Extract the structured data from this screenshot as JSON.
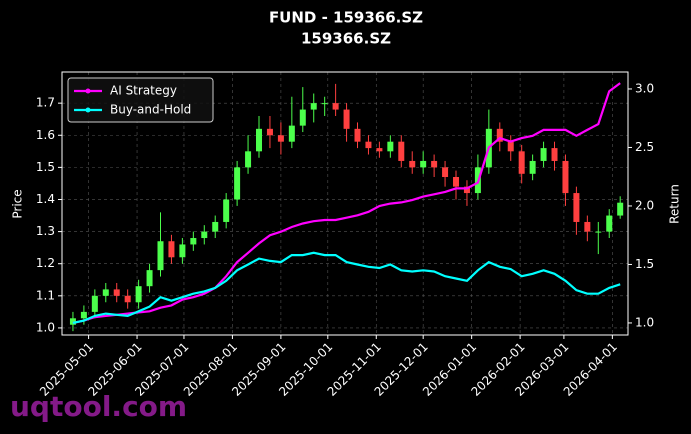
{
  "chart_data": {
    "type": "candlestick",
    "title": "FUND - 159366.SZ",
    "subtitle": "159366.SZ",
    "ylabel": "Price",
    "y2label": "Return",
    "watermark": "uqtool.com",
    "x": [
      "2025-04-21",
      "2025-04-28",
      "2025-05-05",
      "2025-05-12",
      "2025-05-19",
      "2025-05-26",
      "2025-06-02",
      "2025-06-09",
      "2025-06-16",
      "2025-06-23",
      "2025-06-30",
      "2025-07-07",
      "2025-07-14",
      "2025-07-21",
      "2025-07-28",
      "2025-08-04",
      "2025-08-11",
      "2025-08-18",
      "2025-08-25",
      "2025-09-01",
      "2025-09-08",
      "2025-09-15",
      "2025-09-22",
      "2025-09-29",
      "2025-10-06",
      "2025-10-13",
      "2025-10-20",
      "2025-10-27",
      "2025-11-03",
      "2025-11-10",
      "2025-11-17",
      "2025-11-24",
      "2025-12-01",
      "2025-12-08",
      "2025-12-15",
      "2025-12-22",
      "2025-12-29",
      "2026-01-05",
      "2026-01-12",
      "2026-01-19",
      "2026-01-26",
      "2026-02-02",
      "2026-02-09",
      "2026-02-16",
      "2026-02-23",
      "2026-03-02",
      "2026-03-09",
      "2026-03-16",
      "2026-03-23",
      "2026-03-30",
      "2026-04-06"
    ],
    "open": [
      1.01,
      1.03,
      1.05,
      1.1,
      1.12,
      1.1,
      1.08,
      1.13,
      1.18,
      1.27,
      1.22,
      1.26,
      1.28,
      1.3,
      1.33,
      1.4,
      1.5,
      1.55,
      1.62,
      1.6,
      1.58,
      1.63,
      1.68,
      1.7,
      1.7,
      1.68,
      1.62,
      1.58,
      1.56,
      1.55,
      1.58,
      1.52,
      1.5,
      1.52,
      1.5,
      1.47,
      1.44,
      1.42,
      1.5,
      1.62,
      1.58,
      1.55,
      1.48,
      1.52,
      1.56,
      1.52,
      1.42,
      1.33,
      1.3,
      1.3,
      1.35
    ],
    "high": [
      1.05,
      1.07,
      1.12,
      1.14,
      1.14,
      1.12,
      1.15,
      1.2,
      1.36,
      1.29,
      1.28,
      1.3,
      1.32,
      1.35,
      1.42,
      1.52,
      1.6,
      1.66,
      1.66,
      1.64,
      1.72,
      1.75,
      1.73,
      1.72,
      1.76,
      1.7,
      1.64,
      1.6,
      1.58,
      1.6,
      1.6,
      1.55,
      1.55,
      1.54,
      1.52,
      1.49,
      1.46,
      1.54,
      1.68,
      1.64,
      1.6,
      1.57,
      1.54,
      1.58,
      1.58,
      1.54,
      1.44,
      1.35,
      1.33,
      1.37,
      1.41
    ],
    "low": [
      0.99,
      1.01,
      1.03,
      1.08,
      1.08,
      1.06,
      1.06,
      1.11,
      1.16,
      1.2,
      1.2,
      1.24,
      1.26,
      1.28,
      1.31,
      1.38,
      1.48,
      1.53,
      1.56,
      1.54,
      1.56,
      1.61,
      1.64,
      1.66,
      1.66,
      1.58,
      1.56,
      1.54,
      1.53,
      1.53,
      1.5,
      1.48,
      1.48,
      1.47,
      1.44,
      1.4,
      1.38,
      1.4,
      1.48,
      1.55,
      1.52,
      1.45,
      1.46,
      1.5,
      1.49,
      1.38,
      1.29,
      1.27,
      1.23,
      1.28,
      1.34
    ],
    "close": [
      1.03,
      1.05,
      1.1,
      1.12,
      1.1,
      1.08,
      1.13,
      1.18,
      1.27,
      1.22,
      1.26,
      1.28,
      1.3,
      1.33,
      1.4,
      1.5,
      1.55,
      1.62,
      1.6,
      1.58,
      1.63,
      1.68,
      1.7,
      1.7,
      1.68,
      1.62,
      1.58,
      1.56,
      1.55,
      1.58,
      1.52,
      1.5,
      1.52,
      1.5,
      1.47,
      1.44,
      1.42,
      1.5,
      1.62,
      1.58,
      1.55,
      1.48,
      1.52,
      1.56,
      1.52,
      1.42,
      1.33,
      1.3,
      1.3,
      1.35,
      1.39
    ],
    "up_color": "#4cff4c",
    "down_color": "#ff4040",
    "series": [
      {
        "name": "AI Strategy",
        "color": "#ff00ff",
        "axis": "y2",
        "values": [
          1.0,
          1.02,
          1.05,
          1.06,
          1.07,
          1.08,
          1.09,
          1.1,
          1.13,
          1.15,
          1.2,
          1.22,
          1.25,
          1.3,
          1.4,
          1.52,
          1.6,
          1.68,
          1.75,
          1.78,
          1.82,
          1.85,
          1.87,
          1.88,
          1.88,
          1.9,
          1.92,
          1.95,
          2.0,
          2.02,
          2.03,
          2.05,
          2.08,
          2.1,
          2.12,
          2.15,
          2.15,
          2.2,
          2.5,
          2.58,
          2.55,
          2.58,
          2.6,
          2.65,
          2.65,
          2.65,
          2.6,
          2.65,
          2.7,
          2.98,
          3.05
        ]
      },
      {
        "name": "Buy-and-Hold",
        "color": "#00ffff",
        "axis": "y2",
        "values": [
          1.0,
          1.02,
          1.06,
          1.08,
          1.07,
          1.06,
          1.1,
          1.14,
          1.22,
          1.19,
          1.22,
          1.25,
          1.27,
          1.3,
          1.36,
          1.45,
          1.5,
          1.55,
          1.53,
          1.52,
          1.58,
          1.58,
          1.6,
          1.58,
          1.58,
          1.52,
          1.5,
          1.48,
          1.47,
          1.5,
          1.45,
          1.44,
          1.45,
          1.44,
          1.4,
          1.38,
          1.36,
          1.45,
          1.52,
          1.48,
          1.46,
          1.4,
          1.42,
          1.45,
          1.42,
          1.36,
          1.28,
          1.25,
          1.25,
          1.3,
          1.33
        ]
      }
    ],
    "xlim": [
      "2025-04-14",
      "2026-04-11"
    ],
    "xticks": [
      "2025-05-01",
      "2025-06-01",
      "2025-07-01",
      "2025-08-01",
      "2025-09-01",
      "2025-10-01",
      "2025-11-01",
      "2025-12-01",
      "2026-01-01",
      "2026-02-01",
      "2026-03-01",
      "2026-04-01"
    ],
    "ylim": [
      0.978,
      1.797
    ],
    "yticks": [
      {
        "value": 1,
        "label": "1.0"
      },
      1.1,
      1.2,
      1.3,
      1.4,
      1.5,
      1.6,
      1.7
    ],
    "y2lim": [
      0.897,
      3.145
    ],
    "y2ticks": [
      {
        "value": 1,
        "label": "1.0"
      },
      1.5,
      {
        "value": 2,
        "label": "2.0"
      },
      2.5,
      {
        "value": 3,
        "label": "3.0"
      }
    ],
    "grid": true,
    "legend": "upper left"
  }
}
